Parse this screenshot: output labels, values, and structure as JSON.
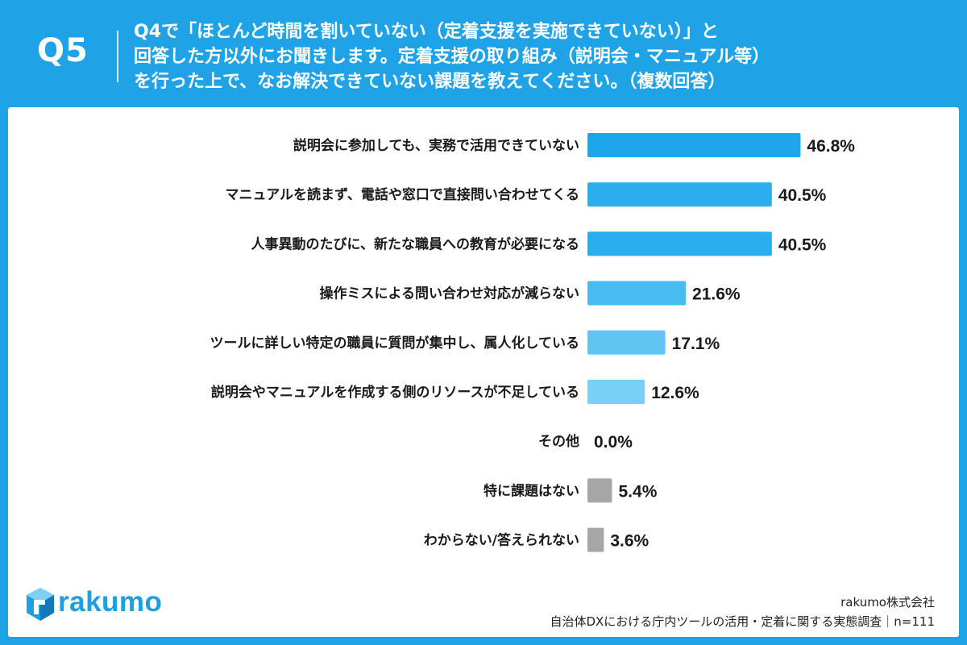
{
  "header": {
    "question_number": "Q5",
    "question_lines": [
      "Q4で「ほとんど時間を割いていない（定着支援を実施できていない）」と",
      "回答した方以外にお聞きします。定着支援の取り組み（説明会・マニュアル等）",
      "を行った上で、なお解決できていない課題を教えてください。（複数回答）"
    ]
  },
  "chart_data": {
    "type": "bar",
    "orientation": "horizontal",
    "categories": [
      "説明会に参加しても、実務で活用できていない",
      "マニュアルを読まず、電話や窓口で直接問い合わせてくる",
      "人事異動のたびに、新たな職員への教育が必要になる",
      "操作ミスによる問い合わせ対応が減らない",
      "ツールに詳しい特定の職員に質問が集中し、属人化している",
      "説明会やマニュアルを作成する側のリソースが不足している",
      "その他",
      "特に課題はない",
      "わからない/答えられない"
    ],
    "values": [
      46.8,
      40.5,
      40.5,
      21.6,
      17.1,
      12.6,
      0.0,
      5.4,
      3.6
    ],
    "value_labels": [
      "46.8%",
      "40.5%",
      "40.5%",
      "21.6%",
      "17.1%",
      "12.6%",
      "0.0%",
      "5.4%",
      "3.6%"
    ],
    "colors": [
      "#1ea6ea",
      "#2aaeee",
      "#2aaeee",
      "#48bbf0",
      "#60c5f3",
      "#78d0f6",
      "#a6a6a6",
      "#a6a6a6",
      "#a6a6a6"
    ],
    "xlim": [
      0,
      100
    ],
    "grid": false,
    "legend": "none"
  },
  "footer": {
    "brand": "rakumo",
    "company": "rakumo株式会社",
    "survey": "自治体DXにおける庁内ツールの活用・定着に関する実態調査｜n=111"
  }
}
